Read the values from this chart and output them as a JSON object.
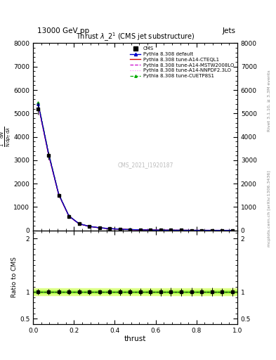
{
  "title_top": "13000 GeV pp",
  "title_top_right": "Jets",
  "plot_title": "Thrust $\\lambda$_2$^{1}$ (CMS jet substructure)",
  "xlabel": "thrust",
  "ylabel_ratio": "Ratio to CMS",
  "watermark": "CMS_2021_I1920187",
  "right_label_top": "Rivet 3.1.10, ≥ 3.3M events",
  "right_label_bottom": "mcplots.cern.ch [arXiv:1306.3436]",
  "xlim": [
    0.0,
    1.0
  ],
  "ylim_main": [
    0,
    8000
  ],
  "ylim_ratio": [
    0.4,
    2.15
  ],
  "thrust_x": [
    0.025,
    0.075,
    0.125,
    0.175,
    0.225,
    0.275,
    0.325,
    0.375,
    0.425,
    0.475,
    0.525,
    0.575,
    0.625,
    0.675,
    0.725,
    0.775,
    0.825,
    0.875,
    0.925,
    0.975
  ],
  "cms_y": [
    5200,
    3200,
    1500,
    600,
    280,
    170,
    110,
    75,
    50,
    35,
    23,
    16,
    11,
    8,
    5.5,
    4,
    2.8,
    2,
    1.4,
    1
  ],
  "cms_yerr": [
    260,
    160,
    75,
    30,
    14,
    8,
    5,
    4,
    3,
    2,
    1.5,
    1,
    0.8,
    0.6,
    0.4,
    0.3,
    0.2,
    0.15,
    0.1,
    0.08
  ],
  "pythia_default_y": [
    5400,
    3300,
    1550,
    620,
    285,
    172,
    112,
    76,
    51,
    36,
    24,
    17,
    12,
    8.5,
    6,
    4.3,
    3.0,
    2.1,
    1.5,
    1.05
  ],
  "pythia_cteq_y": [
    5380,
    3280,
    1540,
    615,
    282,
    170,
    111,
    75.5,
    50.5,
    35.5,
    23.5,
    16.5,
    11.5,
    8.2,
    5.8,
    4.1,
    2.9,
    2.05,
    1.45,
    1.02
  ],
  "pythia_mstw_y": [
    5350,
    3260,
    1530,
    610,
    280,
    168,
    110,
    75,
    50,
    35,
    23,
    16,
    11,
    8,
    5.6,
    4.0,
    2.8,
    2.0,
    1.4,
    1.0
  ],
  "pythia_nnpdf_y": [
    5330,
    3240,
    1520,
    608,
    278,
    167,
    109,
    74.5,
    49.5,
    34.5,
    22.8,
    15.8,
    10.8,
    7.8,
    5.4,
    3.9,
    2.7,
    1.95,
    1.35,
    0.98
  ],
  "pythia_cuetp_y": [
    5450,
    3350,
    1570,
    625,
    288,
    174,
    113,
    77,
    52,
    37,
    25,
    18,
    12.5,
    9,
    6.3,
    4.5,
    3.2,
    2.25,
    1.6,
    1.1
  ],
  "color_cms": "#000000",
  "color_default": "#0000cc",
  "color_cteq": "#cc0000",
  "color_mstw": "#cc00cc",
  "color_nnpdf": "#ff88ff",
  "color_cuetp": "#00aa00",
  "ratio_band_color_outer": "#ddff88",
  "ratio_band_color_inner": "#aaff44",
  "ratio_line_color": "#000000",
  "fig_width": 3.93,
  "fig_height": 5.12,
  "dpi": 100
}
